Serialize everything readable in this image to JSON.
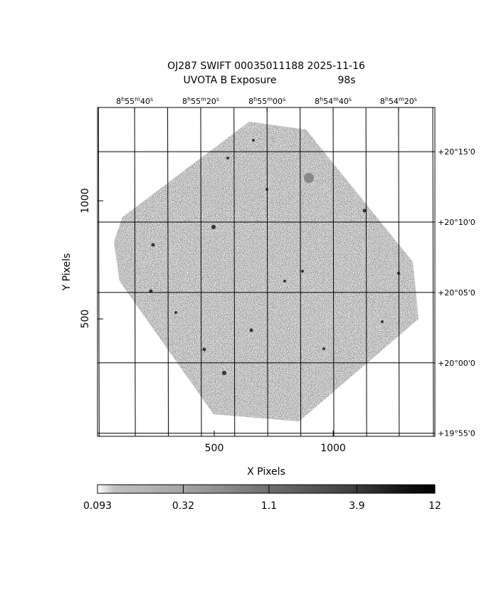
{
  "chart_data": {
    "type": "image",
    "title": "OJ287 SWIFT 00035011188 2025-11-16",
    "subtitle": "UVOTA B Exposure",
    "exposure": "98s",
    "xlabel": "X Pixels",
    "ylabel": "Y Pixels",
    "xlim": [
      9,
      1428
    ],
    "ylim": [
      3,
      1395
    ],
    "xticks": [
      500,
      1000
    ],
    "yticks": [
      500,
      1000
    ],
    "ra_grid": [
      13,
      165,
      304,
      443,
      583,
      722,
      861,
      1000,
      1138,
      1275,
      1419
    ],
    "ra_ticks": [
      {
        "value": 165,
        "label": [
          "8",
          "h",
          "55",
          "m",
          "40",
          "s"
        ]
      },
      {
        "value": 443,
        "label": [
          "8",
          "h",
          "55",
          "m",
          "20",
          "s"
        ]
      },
      {
        "value": 722,
        "label": [
          "8",
          "h",
          "55",
          "m",
          "00",
          "s"
        ]
      },
      {
        "value": 1000,
        "label": [
          "8",
          "h",
          "54",
          "m",
          "40",
          "s"
        ]
      },
      {
        "value": 1275,
        "label": [
          "8",
          "h",
          "54",
          "m",
          "20",
          "s"
        ]
      }
    ],
    "dec_ticks": [
      {
        "value": 1208,
        "label": "+20°15'0"
      },
      {
        "value": 910,
        "label": "+20°10'0"
      },
      {
        "value": 612,
        "label": "+20°05'0"
      },
      {
        "value": 314,
        "label": "+20°00'0"
      },
      {
        "value": 16,
        "label": "+19°55'0"
      }
    ],
    "colorbar": {
      "scale": "log",
      "lim": [
        0.093,
        12
      ],
      "ticks": [
        0.093,
        0.32,
        1.1,
        3.9,
        12
      ]
    }
  }
}
